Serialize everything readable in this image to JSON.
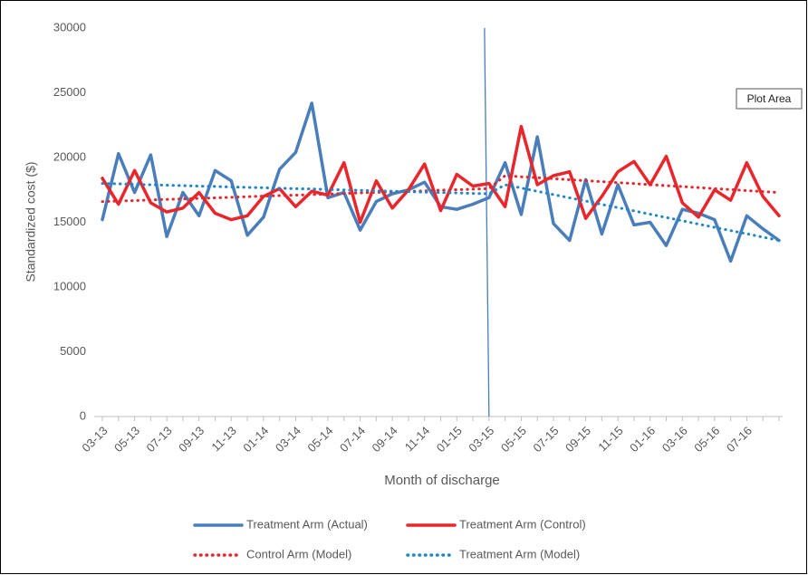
{
  "chart_data": {
    "type": "line",
    "x_label": "Month of discharge",
    "y_label": "Standardized cost ($)",
    "categories": [
      "03-13",
      null,
      "05-13",
      null,
      "07-13",
      null,
      "09-13",
      null,
      "11-13",
      null,
      "01-14",
      null,
      "03-14",
      null,
      "05-14",
      null,
      "07-14",
      null,
      "09-14",
      null,
      "11-14",
      null,
      "01-15",
      null,
      "03-15",
      null,
      "05-15",
      null,
      "07-15",
      null,
      "09-15",
      null,
      "11-15",
      null,
      "01-16",
      null,
      "03-16",
      null,
      "05-16",
      null,
      "07-16",
      null,
      null
    ],
    "series": [
      {
        "name": "Treatment Arm (Actual)",
        "color": "#4a7ebb",
        "dotted": false,
        "values": [
          15200,
          20300,
          17300,
          20200,
          13900,
          17300,
          15500,
          19000,
          18200,
          14000,
          15400,
          19100,
          20400,
          24200,
          16900,
          17300,
          14400,
          16600,
          17200,
          17500,
          18100,
          16200,
          16000,
          16400,
          16900,
          19600,
          15600,
          21600,
          14900,
          13600,
          18300,
          14100,
          17900,
          14800,
          15000,
          13200,
          16000,
          15700,
          15200,
          12000,
          15500,
          14500,
          13600
        ]
      },
      {
        "name": "Treatment Arm (Control)",
        "color": "#e8262b",
        "dotted": false,
        "values": [
          18400,
          16400,
          19000,
          16500,
          15800,
          16100,
          17300,
          15700,
          15200,
          15500,
          17000,
          17600,
          16200,
          17400,
          17100,
          19600,
          15000,
          18200,
          16100,
          17500,
          19500,
          15900,
          18700,
          17800,
          18000,
          16200,
          22400,
          17900,
          18600,
          18900,
          15300,
          17000,
          18900,
          19700,
          17900,
          20100,
          16500,
          15400,
          17500,
          16700,
          19600,
          17000,
          15500
        ]
      },
      {
        "name": "Control Arm (Model)",
        "color": "#e8262b",
        "dotted": true,
        "values": [
          16600,
          16640,
          16680,
          16730,
          16770,
          16810,
          16850,
          16890,
          16930,
          16980,
          17020,
          17060,
          17100,
          17140,
          17180,
          17230,
          17270,
          17310,
          17350,
          17390,
          17430,
          17480,
          17520,
          17560,
          17600,
          18600,
          18520,
          18450,
          18370,
          18290,
          18220,
          18140,
          18060,
          17990,
          17910,
          17830,
          17760,
          17680,
          17600,
          17530,
          17450,
          17370,
          17300
        ]
      },
      {
        "name": "Treatment Arm (Model)",
        "color": "#1f86c8",
        "dotted": true,
        "values": [
          18000,
          17970,
          17930,
          17900,
          17870,
          17830,
          17800,
          17770,
          17730,
          17700,
          17670,
          17630,
          17600,
          17570,
          17530,
          17500,
          17470,
          17430,
          17400,
          17370,
          17330,
          17300,
          17270,
          17230,
          17200,
          17900,
          17650,
          17390,
          17140,
          16890,
          16640,
          16380,
          16130,
          15880,
          15620,
          15370,
          15120,
          14860,
          14610,
          14360,
          14110,
          13850,
          13600
        ]
      }
    ],
    "ylim": [
      0,
      30000
    ],
    "yticks": [
      0,
      5000,
      10000,
      15000,
      20000,
      25000,
      30000
    ],
    "vline_index": 24,
    "tooltip": "Plot Area"
  }
}
